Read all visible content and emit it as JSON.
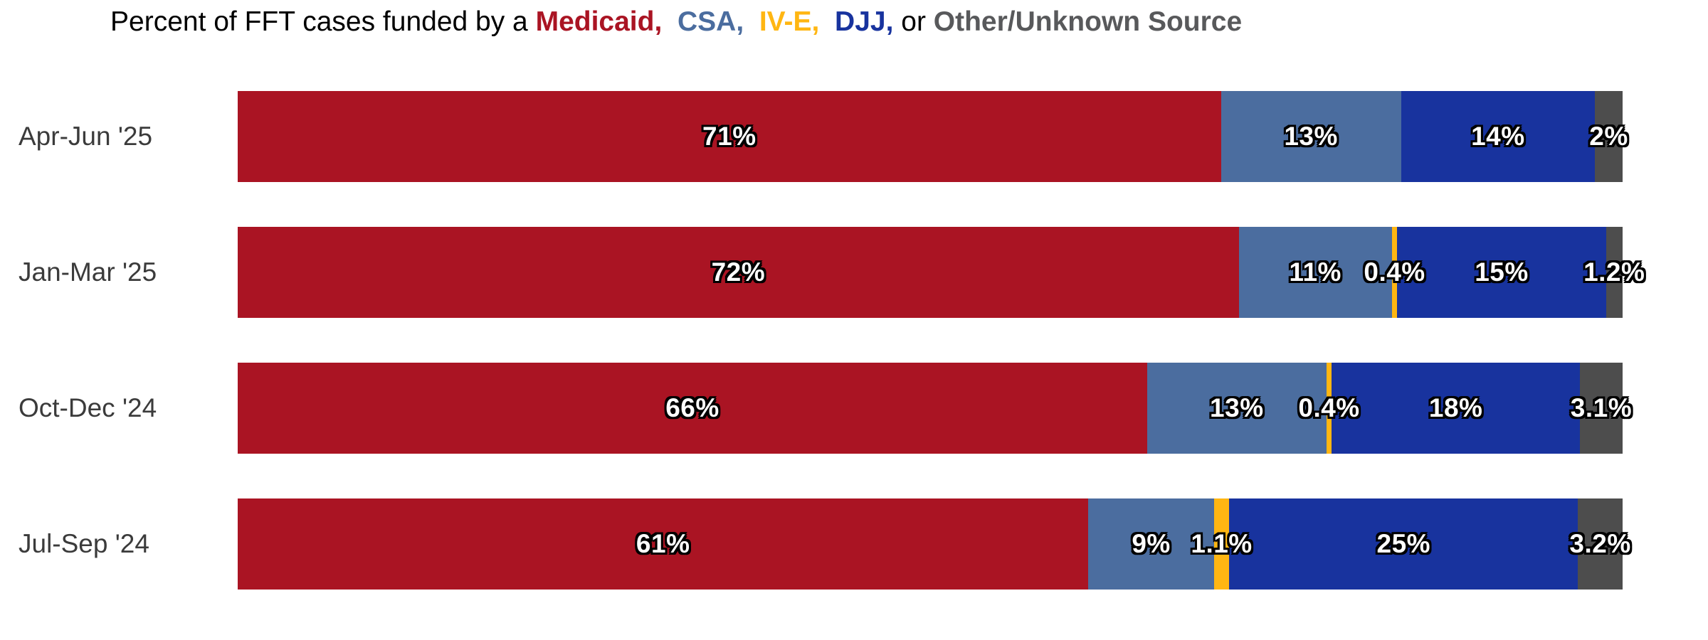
{
  "title": {
    "full_text": "Percent of FFT cases funded by a Medicaid,  CSA,  IV-E,  DJJ, or Other/Unknown Source",
    "parts": [
      {
        "text": "Percent of FFT cases funded by a ",
        "color": "#000000",
        "bold": false
      },
      {
        "text": "Medicaid, ",
        "color": "#AA1423",
        "bold": true
      },
      {
        "text": " CSA, ",
        "color": "#4B6D9F",
        "bold": true
      },
      {
        "text": " IV-E, ",
        "color": "#FFB612",
        "bold": true
      },
      {
        "text": " DJJ, ",
        "color": "#18339E",
        "bold": true
      },
      {
        "text": "or ",
        "color": "#000000",
        "bold": false
      },
      {
        "text": "Other/Unknown Source",
        "color": "#58595B",
        "bold": true
      }
    ]
  },
  "chart_data": {
    "type": "bar",
    "stacked": true,
    "orientation": "horizontal",
    "normalized_to_100": true,
    "grid": false,
    "legend": "inline-in-title",
    "value_unit": "%",
    "xlim": [
      0,
      100
    ],
    "title": "Percent of FFT cases funded by a Medicaid, CSA, IV-E, DJJ, or Other/Unknown Source",
    "categories": [
      "Apr-Jun '25",
      "Jan-Mar '25",
      "Oct-Dec '24",
      "Jul-Sep '24"
    ],
    "series": [
      {
        "name": "Medicaid",
        "color": "#AA1423",
        "values": [
          71,
          72,
          66,
          61
        ],
        "labels": [
          "71%",
          "72%",
          "66%",
          "61%"
        ]
      },
      {
        "name": "CSA",
        "color": "#4B6D9F",
        "values": [
          13,
          11,
          13,
          9
        ],
        "labels": [
          "13%",
          "11%",
          "13%",
          "9%"
        ]
      },
      {
        "name": "IV-E",
        "color": "#FFB612",
        "values": [
          0,
          0.4,
          0.4,
          1.1
        ],
        "labels": [
          "",
          "0.4%",
          "0.4%",
          "1.1%"
        ]
      },
      {
        "name": "DJJ",
        "color": "#18339E",
        "values": [
          14,
          15,
          18,
          25
        ],
        "labels": [
          "14%",
          "15%",
          "18%",
          "25%"
        ]
      },
      {
        "name": "Other/Unknown Source",
        "color": "#4D4D4D",
        "values": [
          2,
          1.2,
          3.1,
          3.2
        ],
        "labels": [
          "2%",
          "1.2%",
          "3.1%",
          "3.2%"
        ]
      }
    ]
  },
  "styles": {
    "background": "#FFFFFF",
    "axis_label_color": "#3B3B3B",
    "bar_label_color": "#FFFFFF",
    "bar_label_outline": "#000000"
  }
}
